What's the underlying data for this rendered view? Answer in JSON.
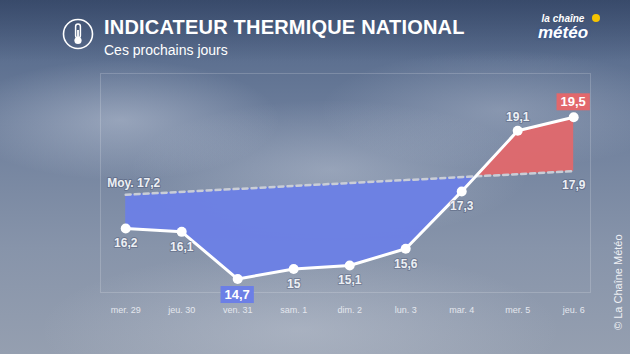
{
  "chart_data": {
    "type": "line",
    "title": "INDICATEUR THERMIQUE NATIONAL",
    "subtitle": "Ces prochains jours",
    "logo": [
      "la chaîne",
      "météo"
    ],
    "source": "© La Chaîne Météo",
    "categories": [
      "mer. 29",
      "jeu. 30",
      "ven. 31",
      "sam. 1",
      "dim. 2",
      "lun. 3",
      "mar. 4",
      "mer. 5",
      "jeu. 6"
    ],
    "values": [
      16.2,
      16.1,
      14.7,
      15,
      15.1,
      15.6,
      17.3,
      19.1,
      19.5
    ],
    "value_labels": [
      "16,2",
      "16,1",
      "14,7",
      "15",
      "15,1",
      "15,6",
      "17,3",
      "19,1",
      "19,5"
    ],
    "average": {
      "x": [
        "mer. 29",
        "jeu. 6"
      ],
      "values": [
        17.2,
        17.9
      ],
      "value_labels": [
        "Moy. 17,2",
        "17,9"
      ],
      "line_style": "dashed"
    },
    "colors": [
      "#6c7fe6",
      "#e2686c"
    ],
    "color": "#ffffff",
    "marker": "circle",
    "data_labels": true,
    "tick_labels": "x",
    "ylim": [
      14.3,
      20.8
    ]
  }
}
